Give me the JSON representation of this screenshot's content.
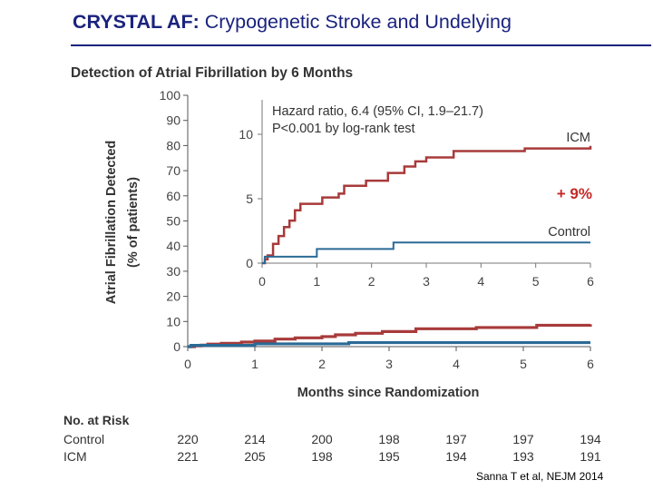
{
  "slide": {
    "title_bold": "CRYSTAL AF:",
    "title_rest": " Crypogenetic Stroke and Undelying",
    "citation": "Sanna T et al, NEJM 2014"
  },
  "colors": {
    "title": "#1a237e",
    "icm": "#a83a3a",
    "control": "#2a6a96",
    "annotation": "#c62828"
  },
  "chart_data": {
    "type": "line",
    "title": "Detection of Atrial Fibrillation by 6 Months",
    "xlabel": "Months since Randomization",
    "ylabel_line1": "Atrial Fibrillation Detected",
    "ylabel_line2": "(% of patients)",
    "xlim": [
      0,
      6
    ],
    "ylim": [
      0,
      100
    ],
    "xticks": [
      "0",
      "1",
      "2",
      "3",
      "4",
      "5",
      "6"
    ],
    "yticks": [
      "0",
      "10",
      "20",
      "30",
      "40",
      "50",
      "60",
      "70",
      "80",
      "90",
      "100"
    ],
    "series": [
      {
        "name": "ICM",
        "color": "#a83a3a",
        "points": [
          [
            0,
            0
          ],
          [
            0.1,
            0.3
          ],
          [
            0.2,
            0.6
          ],
          [
            0.3,
            1.0
          ],
          [
            0.5,
            1.3
          ],
          [
            0.8,
            1.8
          ],
          [
            1.0,
            2.2
          ],
          [
            1.3,
            3.0
          ],
          [
            1.6,
            3.5
          ],
          [
            2.0,
            4.0
          ],
          [
            2.2,
            4.7
          ],
          [
            2.5,
            5.3
          ],
          [
            2.9,
            6.0
          ],
          [
            3.4,
            7.1
          ],
          [
            4.3,
            7.6
          ],
          [
            5.2,
            8.5
          ],
          [
            6.0,
            8.9
          ]
        ]
      },
      {
        "name": "Control",
        "color": "#2a6a96",
        "points": [
          [
            0,
            0
          ],
          [
            0.05,
            0.5
          ],
          [
            0.3,
            0.5
          ],
          [
            1.0,
            1.1
          ],
          [
            1.5,
            1.1
          ],
          [
            2.4,
            1.6
          ],
          [
            3.0,
            1.6
          ],
          [
            6.0,
            1.6
          ]
        ]
      }
    ],
    "inset": {
      "xticks": [
        "0",
        "1",
        "2",
        "3",
        "4",
        "5",
        "6"
      ],
      "yticks": [
        "0",
        "5",
        "10"
      ],
      "ylim": [
        0,
        10
      ],
      "hazard_line1": "Hazard ratio, 6.4 (95% CI, 1.9–21.7)",
      "hazard_line2": "P<0.001 by log-rank test",
      "icm_label": "ICM",
      "control_label": "Control",
      "icm_points": [
        [
          0,
          0
        ],
        [
          0.05,
          0.3
        ],
        [
          0.1,
          0.6
        ],
        [
          0.2,
          1.5
        ],
        [
          0.3,
          2.1
        ],
        [
          0.4,
          2.8
        ],
        [
          0.5,
          3.3
        ],
        [
          0.6,
          4.1
        ],
        [
          0.7,
          4.6
        ],
        [
          0.9,
          4.6
        ],
        [
          1.1,
          5.1
        ],
        [
          1.3,
          5.1
        ],
        [
          1.4,
          5.4
        ],
        [
          1.5,
          6.0
        ],
        [
          1.8,
          6.0
        ],
        [
          1.9,
          6.4
        ],
        [
          2.2,
          6.4
        ],
        [
          2.3,
          7.0
        ],
        [
          2.5,
          7.0
        ],
        [
          2.6,
          7.5
        ],
        [
          2.8,
          7.9
        ],
        [
          3.0,
          8.2
        ],
        [
          3.4,
          8.2
        ],
        [
          3.5,
          8.7
        ],
        [
          4.5,
          8.7
        ],
        [
          4.8,
          8.9
        ],
        [
          6.0,
          8.9
        ],
        [
          6.0,
          9.1
        ]
      ],
      "control_points": [
        [
          0,
          0
        ],
        [
          0.05,
          0.5
        ],
        [
          0.9,
          0.5
        ],
        [
          1.0,
          1.1
        ],
        [
          2.3,
          1.1
        ],
        [
          2.4,
          1.6
        ],
        [
          6.0,
          1.6
        ]
      ]
    },
    "annotation": "+ 9%"
  },
  "risk_table": {
    "title": "No. at Risk",
    "rows": [
      {
        "label": "Control",
        "values": [
          "220",
          "214",
          "200",
          "198",
          "197",
          "197",
          "194"
        ]
      },
      {
        "label": "ICM",
        "values": [
          "221",
          "205",
          "198",
          "195",
          "194",
          "193",
          "191"
        ]
      }
    ]
  }
}
